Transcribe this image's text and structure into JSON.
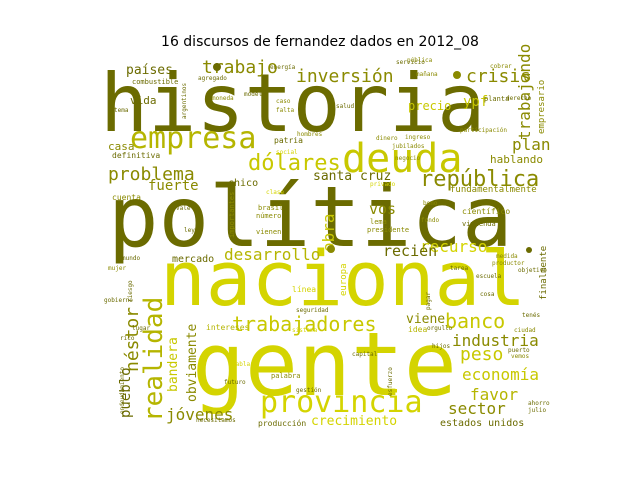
{
  "chart_data": {
    "type": "wordcloud",
    "title": "16 discursos de fernandez dados en 2012_08",
    "grid": false,
    "colors": [
      "#6b6b00",
      "#8a8a00",
      "#a3a300",
      "#b5b500",
      "#c8c800",
      "#d4d400",
      "#b9b922",
      "#9c9c10"
    ],
    "words": [
      {
        "text": "historia",
        "weight": 100
      },
      {
        "text": "política",
        "weight": 98
      },
      {
        "text": "nacional",
        "weight": 90
      },
      {
        "text": "gente",
        "weight": 92
      },
      {
        "text": "deuda",
        "weight": 45
      },
      {
        "text": "empresa",
        "weight": 40
      },
      {
        "text": "provincia",
        "weight": 40
      },
      {
        "text": "realidad",
        "weight": 38
      },
      {
        "text": "república",
        "weight": 30
      },
      {
        "text": "dólares",
        "weight": 28
      },
      {
        "text": "problema",
        "weight": 24
      },
      {
        "text": "trabajadores",
        "weight": 24
      },
      {
        "text": "banco",
        "weight": 24
      },
      {
        "text": "inversión",
        "weight": 22
      },
      {
        "text": "crisis",
        "weight": 22
      },
      {
        "text": "trabajo",
        "weight": 22
      },
      {
        "text": "desarrollo",
        "weight": 20
      },
      {
        "text": "trabajando",
        "weight": 18
      },
      {
        "text": "industria",
        "weight": 19
      },
      {
        "text": "néstor",
        "weight": 19
      },
      {
        "text": "jóvenes",
        "weight": 18
      },
      {
        "text": "peso",
        "weight": 19
      },
      {
        "text": "recurso",
        "weight": 17
      },
      {
        "text": "economía",
        "weight": 17
      },
      {
        "text": "favor",
        "weight": 17
      },
      {
        "text": "sector",
        "weight": 17
      },
      {
        "text": "ypf",
        "weight": 15
      },
      {
        "text": "plan",
        "weight": 16
      },
      {
        "text": "obra",
        "weight": 16
      },
      {
        "text": "fuerte",
        "weight": 15
      },
      {
        "text": "santa cruz",
        "weight": 14
      },
      {
        "text": "vos",
        "weight": 15
      },
      {
        "text": "recién",
        "weight": 15
      },
      {
        "text": "países",
        "weight": 13
      },
      {
        "text": "pueblo",
        "weight": 14
      },
      {
        "text": "bandera",
        "weight": 14
      },
      {
        "text": "obviamente",
        "weight": 13
      },
      {
        "text": "viene",
        "weight": 13
      },
      {
        "text": "crecimiento",
        "weight": 12
      },
      {
        "text": "precio",
        "weight": 12
      },
      {
        "text": "casa",
        "weight": 11
      },
      {
        "text": "vida",
        "weight": 11
      },
      {
        "text": "mercado",
        "weight": 10
      },
      {
        "text": "hablando",
        "weight": 10
      },
      {
        "text": "estados unidos",
        "weight": 10
      },
      {
        "text": "fundamentalmente",
        "weight": 9
      },
      {
        "text": "chico",
        "weight": 10
      },
      {
        "text": "empresario",
        "weight": 9
      },
      {
        "text": "finalmente",
        "weight": 9
      },
      {
        "text": "europa",
        "weight": 9
      },
      {
        "text": "cuenta",
        "weight": 8
      },
      {
        "text": "definitiva",
        "weight": 8
      },
      {
        "text": "patria",
        "weight": 8
      },
      {
        "text": "producción",
        "weight": 8
      },
      {
        "text": "intereses",
        "weight": 8
      },
      {
        "text": "importantes",
        "weight": 8
      },
      {
        "text": "línea",
        "weight": 8
      },
      {
        "text": "científico",
        "weight": 8
      },
      {
        "text": "vivienda",
        "weight": 7
      },
      {
        "text": "idea",
        "weight": 8
      },
      {
        "text": "número",
        "weight": 7
      },
      {
        "text": "vienen",
        "weight": 7
      },
      {
        "text": "lema",
        "weight": 7
      },
      {
        "text": "presidente",
        "weight": 7
      },
      {
        "text": "combustible",
        "weight": 7
      },
      {
        "text": "planta",
        "weight": 7
      },
      {
        "text": "brasil",
        "weight": 7
      },
      {
        "text": "palabra",
        "weight": 7
      },
      {
        "text": "orgullo",
        "weight": 6
      },
      {
        "text": "pagar",
        "weight": 6
      },
      {
        "text": "mañana",
        "weight": 6
      },
      {
        "text": "pública",
        "weight": 6
      },
      {
        "text": "agregado",
        "weight": 6
      },
      {
        "text": "endeudamiento",
        "weight": 6
      },
      {
        "text": "sistema",
        "weight": 6
      },
      {
        "text": "social",
        "weight": 6
      },
      {
        "text": "fondo",
        "weight": 6
      },
      {
        "text": "necesitamos",
        "weight": 5
      },
      {
        "text": "privado",
        "weight": 5
      },
      {
        "text": "participación",
        "weight": 5
      },
      {
        "text": "jubilados",
        "weight": 5
      },
      {
        "text": "hombres",
        "weight": 5
      },
      {
        "text": "ingreso",
        "weight": 5
      },
      {
        "text": "dinero",
        "weight": 5
      },
      {
        "text": "vemos",
        "weight": 5
      },
      {
        "text": "tenés",
        "weight": 5
      },
      {
        "text": "negocio",
        "weight": 5
      },
      {
        "text": "moneda",
        "weight": 5
      },
      {
        "text": "ahorro",
        "weight": 5
      },
      {
        "text": "falta",
        "weight": 5
      },
      {
        "text": "caso",
        "weight": 5
      },
      {
        "text": "mujer",
        "weight": 5
      },
      {
        "text": "hablar",
        "weight": 5
      },
      {
        "text": "ciudad",
        "weight": 5
      },
      {
        "text": "medida",
        "weight": 5
      },
      {
        "text": "bono",
        "weight": 5
      },
      {
        "text": "clase",
        "weight": 5
      },
      {
        "text": "productor",
        "weight": 4
      },
      {
        "text": "derecho",
        "weight": 4
      },
      {
        "text": "cobrar",
        "weight": 4
      },
      {
        "text": "argentinos",
        "weight": 4
      },
      {
        "text": "esfuerzo",
        "weight": 4
      },
      {
        "text": "tarea",
        "weight": 4
      },
      {
        "text": "riesgo",
        "weight": 4
      },
      {
        "text": "gestión",
        "weight": 4
      },
      {
        "text": "escuela",
        "weight": 4
      },
      {
        "text": "capital",
        "weight": 4
      },
      {
        "text": "servicio",
        "weight": 4
      },
      {
        "text": "energía",
        "weight": 4
      },
      {
        "text": "modelo",
        "weight": 4
      },
      {
        "text": "julio",
        "weight": 4
      },
      {
        "text": "tema",
        "weight": 4
      },
      {
        "text": "cosa",
        "weight": 4
      },
      {
        "text": "lugar",
        "weight": 4
      },
      {
        "text": "mundo",
        "weight": 4
      },
      {
        "text": "futuro",
        "weight": 4
      },
      {
        "text": "hijos",
        "weight": 4
      },
      {
        "text": "ley",
        "weight": 4
      },
      {
        "text": "rico",
        "weight": 4
      },
      {
        "text": "seguridad",
        "weight": 4
      },
      {
        "text": "salud",
        "weight": 4
      },
      {
        "text": "objetivo",
        "weight": 4
      },
      {
        "text": "puerto",
        "weight": 4
      },
      {
        "text": "vale",
        "weight": 4
      },
      {
        "text": "gobierno",
        "weight": 4
      }
    ]
  }
}
